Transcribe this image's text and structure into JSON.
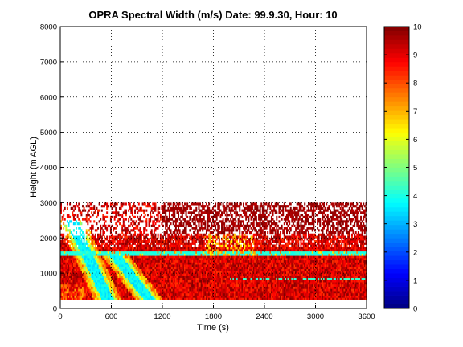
{
  "chart_data": {
    "type": "heatmap",
    "title": "OPRA Spectral Width (m/s)  Date: 99.9.30, Hour: 10",
    "xlabel": "Time (s)",
    "ylabel": "Height (m AGL)",
    "xlim": [
      0,
      3600
    ],
    "ylim": [
      0,
      8000
    ],
    "x_ticks": [
      "0",
      "600",
      "1200",
      "1800",
      "2400",
      "3000",
      "3600"
    ],
    "y_ticks": [
      "0",
      "1000",
      "2000",
      "3000",
      "4000",
      "5000",
      "6000",
      "7000",
      "8000"
    ],
    "grid": true,
    "colorbar": {
      "range": [
        0,
        10
      ],
      "ticks": [
        "0",
        "1",
        "2",
        "3",
        "4",
        "5",
        "6",
        "7",
        "8",
        "9",
        "10"
      ],
      "colormap": "jet"
    },
    "data_extent": {
      "time_range": [
        0,
        3600
      ],
      "height_range": [
        250,
        3000
      ]
    },
    "features": [
      {
        "name": "diagonal low-width band 1",
        "time_start": [
          130,
          2500
        ],
        "time_end": [
          560,
          250
        ],
        "value": 3.5
      },
      {
        "name": "diagonal low-width band 2",
        "time_start": [
          620,
          1600
        ],
        "time_end": [
          1050,
          250
        ],
        "value": 3.5
      },
      {
        "name": "near-constant layer",
        "height": 1550,
        "time_range": [
          0,
          3600
        ],
        "value": 4
      },
      {
        "name": "near-constant layer",
        "height": 850,
        "time_range": [
          2000,
          3600
        ],
        "value": 4
      },
      {
        "name": "high-width region",
        "height_range": [
          1800,
          3000
        ],
        "time_range": [
          1200,
          3600
        ],
        "value": 9.5
      }
    ]
  }
}
